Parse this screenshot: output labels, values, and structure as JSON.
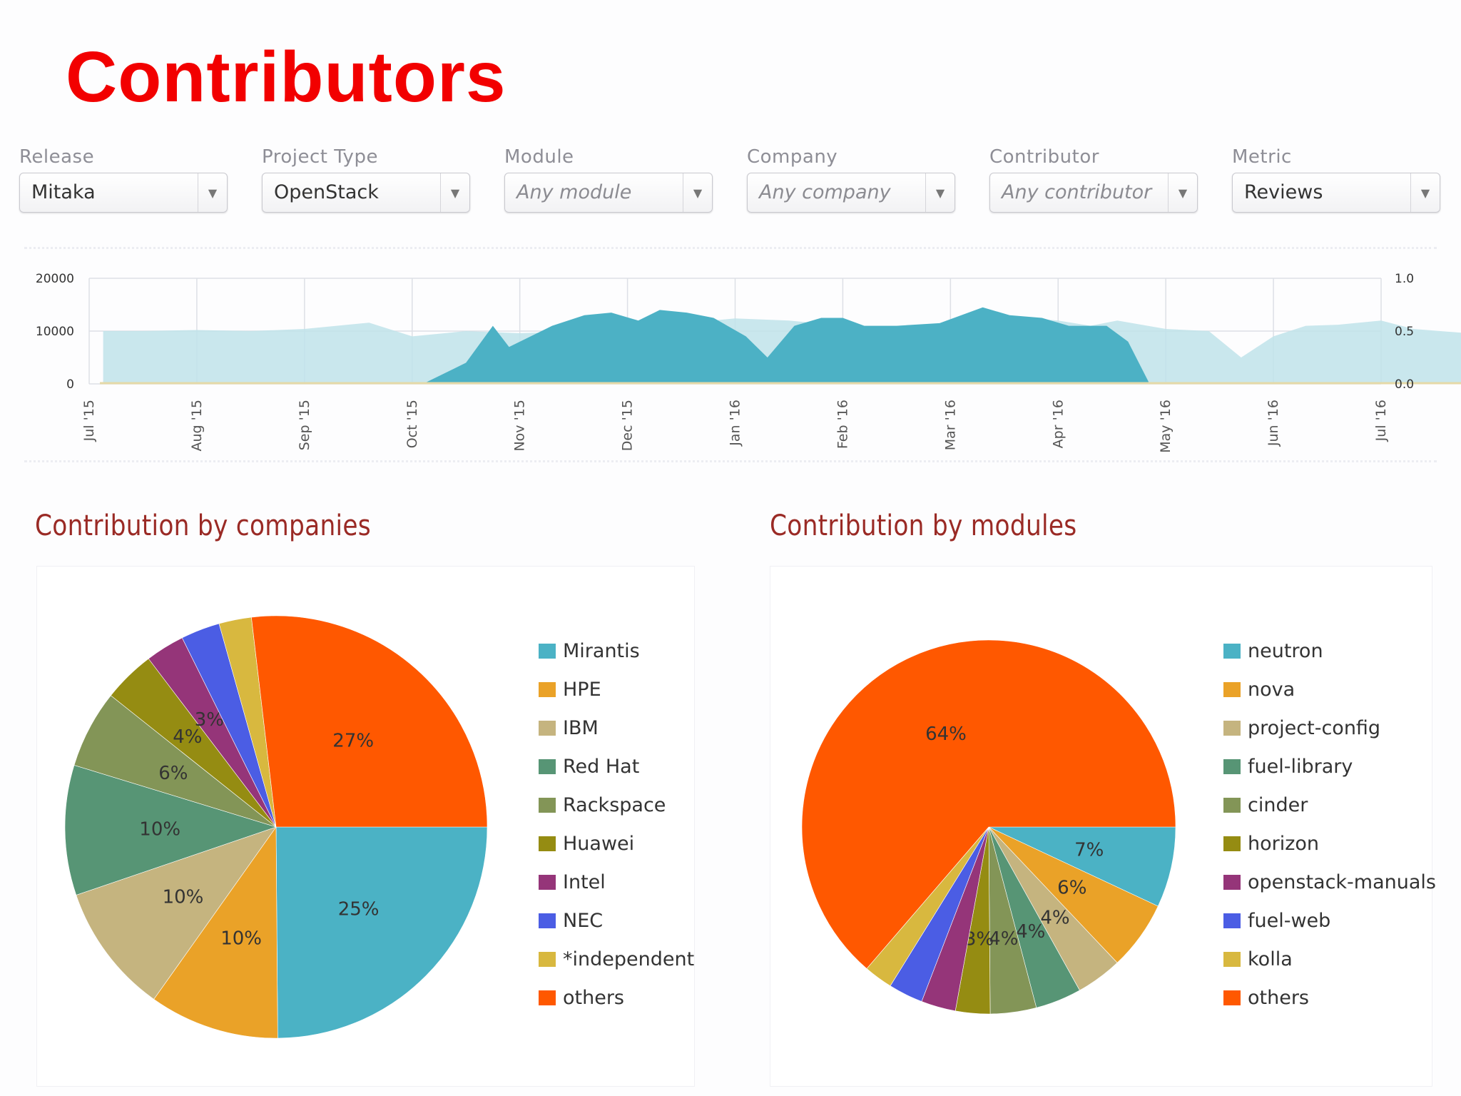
{
  "page": {
    "title": "Contributors"
  },
  "filters": [
    {
      "name": "release",
      "label": "Release",
      "value": "Mitaka",
      "placeholder": false
    },
    {
      "name": "project-type",
      "label": "Project Type",
      "value": "OpenStack",
      "placeholder": false
    },
    {
      "name": "module",
      "label": "Module",
      "value": "Any module",
      "placeholder": true
    },
    {
      "name": "company",
      "label": "Company",
      "value": "Any company",
      "placeholder": true
    },
    {
      "name": "contributor",
      "label": "Contributor",
      "value": "Any contributor",
      "placeholder": true
    },
    {
      "name": "metric",
      "label": "Metric",
      "value": "Reviews",
      "placeholder": false
    }
  ],
  "sections": {
    "companies_title": "Contribution by companies",
    "modules_title": "Contribution by modules"
  },
  "colors": {
    "light_area": "#bfe3ea",
    "dark_area": "#4cb1c5",
    "grid": "#dde0e6",
    "pie": [
      "#4bb2c5",
      "#eaa228",
      "#c5b47f",
      "#579575",
      "#839557",
      "#958c12",
      "#953579",
      "#4b5de4",
      "#d8b83f",
      "#ff5800"
    ]
  },
  "chart_data": [
    {
      "type": "area",
      "title": "",
      "x": [
        "Jul '15",
        "Aug '15",
        "Sep '15",
        "Oct '15",
        "Nov '15",
        "Dec '15",
        "Jan '16",
        "Feb '16",
        "Mar '16",
        "Apr '16",
        "May '16",
        "Jun '16",
        "Jul '16"
      ],
      "x_ticks": [
        "Jul '15",
        "Aug '15",
        "Sep '15",
        "Oct '15",
        "Nov '15",
        "Dec '15",
        "Jan '16",
        "Feb '16",
        "Mar '16",
        "Apr '16",
        "May '16",
        "Jun '16",
        "Jul '16"
      ],
      "y_left_ticks": [
        "20000",
        "10000",
        "0"
      ],
      "y_right_ticks": [
        "1.0",
        "0.5",
        "0.0"
      ],
      "ylim": [
        0,
        20000
      ],
      "y2lim": [
        0,
        1.0
      ],
      "series": [
        {
          "axis": "right",
          "points": [
            [
              0.13,
              0.5
            ],
            [
              0.5,
              0.5
            ],
            [
              1.0,
              0.51
            ],
            [
              1.5,
              0.5
            ],
            [
              2.0,
              0.52
            ],
            [
              2.6,
              0.58
            ],
            [
              3.0,
              0.45
            ],
            [
              3.5,
              0.5
            ],
            [
              4.0,
              0.48
            ],
            [
              4.6,
              0.5
            ],
            [
              5.0,
              0.55
            ],
            [
              5.5,
              0.57
            ],
            [
              6.0,
              0.62
            ],
            [
              6.5,
              0.6
            ],
            [
              7.0,
              0.55
            ],
            [
              7.5,
              0.55
            ],
            [
              8.0,
              0.57
            ],
            [
              8.5,
              0.64
            ],
            [
              9.0,
              0.6
            ],
            [
              9.3,
              0.55
            ],
            [
              9.55,
              0.6
            ],
            [
              10.0,
              0.52
            ],
            [
              10.4,
              0.5
            ],
            [
              10.7,
              0.25
            ],
            [
              11.0,
              0.45
            ],
            [
              11.3,
              0.55
            ],
            [
              11.6,
              0.56
            ],
            [
              12.0,
              0.6
            ],
            [
              12.3,
              0.52
            ],
            [
              12.8,
              0.48
            ],
            [
              12.88,
              0.48
            ]
          ]
        },
        {
          "axis": "left",
          "points": [
            [
              3.1,
              0
            ],
            [
              3.5,
              4000
            ],
            [
              3.75,
              11000
            ],
            [
              3.9,
              7000
            ],
            [
              4.3,
              11000
            ],
            [
              4.6,
              13000
            ],
            [
              4.85,
              13500
            ],
            [
              5.1,
              12000
            ],
            [
              5.3,
              14000
            ],
            [
              5.55,
              13500
            ],
            [
              5.8,
              12500
            ],
            [
              6.1,
              9000
            ],
            [
              6.3,
              5000
            ],
            [
              6.55,
              11000
            ],
            [
              6.8,
              12500
            ],
            [
              7.0,
              12500
            ],
            [
              7.2,
              11000
            ],
            [
              7.5,
              11000
            ],
            [
              7.9,
              11500
            ],
            [
              8.3,
              14500
            ],
            [
              8.55,
              13000
            ],
            [
              8.85,
              12500
            ],
            [
              9.1,
              11000
            ],
            [
              9.45,
              11000
            ],
            [
              9.65,
              8000
            ],
            [
              9.85,
              0
            ]
          ]
        }
      ]
    },
    {
      "type": "pie",
      "title": "Contribution by companies",
      "categories": [
        "Mirantis",
        "HPE",
        "IBM",
        "Red Hat",
        "Rackspace",
        "Huawei",
        "Intel",
        "NEC",
        "*independent",
        "others"
      ],
      "values": [
        25,
        10,
        10,
        10,
        6,
        4,
        3,
        3,
        2.5,
        27
      ],
      "labels": [
        "25%",
        "10%",
        "10%",
        "10%",
        "6%",
        "4%",
        "3%",
        "",
        "",
        "27%"
      ]
    },
    {
      "type": "pie",
      "title": "Contribution by modules",
      "categories": [
        "neutron",
        "nova",
        "project-config",
        "fuel-library",
        "cinder",
        "horizon",
        "openstack-manuals",
        "fuel-web",
        "kolla",
        "others"
      ],
      "values": [
        7,
        6,
        4,
        4,
        4,
        3,
        3,
        3,
        2.5,
        64
      ],
      "labels": [
        "7%",
        "6%",
        "4%",
        "4%",
        "4%",
        "3%",
        "",
        "",
        "",
        "64%"
      ]
    }
  ]
}
